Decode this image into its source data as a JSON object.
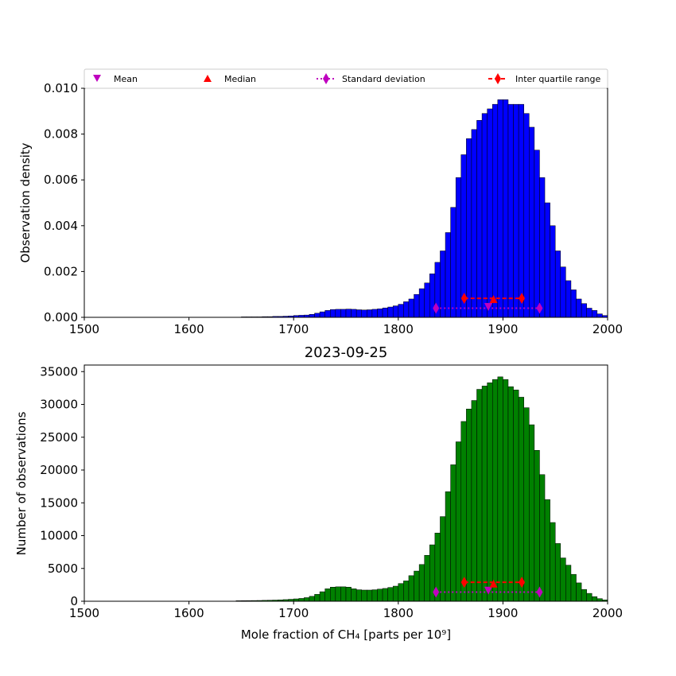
{
  "legend": {
    "location": "top, above upper panel",
    "entries": [
      {
        "label": "Mean",
        "marker": "triangle-down",
        "color": "#bf00bf"
      },
      {
        "label": "Median",
        "marker": "triangle-up",
        "color": "#ff0000"
      },
      {
        "label": "Standard deviation",
        "marker": "diamond",
        "color": "#bf00bf",
        "line": "dotted"
      },
      {
        "label": "Inter quartile range",
        "marker": "diamond",
        "color": "#ff0000",
        "line": "dashed"
      }
    ]
  },
  "chart_data": [
    {
      "type": "bar",
      "panel": "top",
      "bar_color": "#0000ff",
      "ylabel": "Observation density",
      "xlim": [
        1500,
        2000
      ],
      "ylim": [
        0,
        0.01
      ],
      "xticks": [
        "1500",
        "1600",
        "1700",
        "1800",
        "1900",
        "2000"
      ],
      "yticks": [
        "0.000",
        "0.002",
        "0.004",
        "0.006",
        "0.008",
        "0.010"
      ],
      "grid": false,
      "bin_width": 5,
      "bins": [
        [
          1650,
          2e-05
        ],
        [
          1655,
          2e-05
        ],
        [
          1660,
          2e-05
        ],
        [
          1665,
          2e-05
        ],
        [
          1670,
          3e-05
        ],
        [
          1675,
          3e-05
        ],
        [
          1680,
          4e-05
        ],
        [
          1685,
          4e-05
        ],
        [
          1690,
          5e-05
        ],
        [
          1695,
          6e-05
        ],
        [
          1700,
          8e-05
        ],
        [
          1705,
          9e-05
        ],
        [
          1710,
          0.0001
        ],
        [
          1715,
          0.00013
        ],
        [
          1720,
          0.00018
        ],
        [
          1725,
          0.00024
        ],
        [
          1730,
          0.0003
        ],
        [
          1735,
          0.00034
        ],
        [
          1740,
          0.00035
        ],
        [
          1745,
          0.00035
        ],
        [
          1750,
          0.00036
        ],
        [
          1755,
          0.00035
        ],
        [
          1760,
          0.00033
        ],
        [
          1765,
          0.00032
        ],
        [
          1770,
          0.00033
        ],
        [
          1775,
          0.00035
        ],
        [
          1780,
          0.00037
        ],
        [
          1785,
          0.00041
        ],
        [
          1790,
          0.00045
        ],
        [
          1795,
          0.0005
        ],
        [
          1800,
          0.00057
        ],
        [
          1805,
          0.00068
        ],
        [
          1810,
          0.0008
        ],
        [
          1815,
          0.001
        ],
        [
          1820,
          0.00125
        ],
        [
          1825,
          0.0015
        ],
        [
          1830,
          0.0019
        ],
        [
          1835,
          0.0024
        ],
        [
          1840,
          0.0029
        ],
        [
          1845,
          0.0037
        ],
        [
          1850,
          0.0048
        ],
        [
          1855,
          0.0061
        ],
        [
          1860,
          0.0071
        ],
        [
          1865,
          0.0078
        ],
        [
          1870,
          0.0082
        ],
        [
          1875,
          0.0086
        ],
        [
          1880,
          0.0089
        ],
        [
          1885,
          0.0091
        ],
        [
          1890,
          0.0093
        ],
        [
          1895,
          0.0095
        ],
        [
          1900,
          0.0095
        ],
        [
          1905,
          0.0093
        ],
        [
          1910,
          0.0093
        ],
        [
          1915,
          0.0093
        ],
        [
          1920,
          0.0089
        ],
        [
          1925,
          0.0083
        ],
        [
          1930,
          0.0073
        ],
        [
          1935,
          0.0061
        ],
        [
          1940,
          0.005
        ],
        [
          1945,
          0.004
        ],
        [
          1950,
          0.0029
        ],
        [
          1955,
          0.0022
        ],
        [
          1960,
          0.0016
        ],
        [
          1965,
          0.0012
        ],
        [
          1970,
          0.0008
        ],
        [
          1975,
          0.0006
        ],
        [
          1980,
          0.0004
        ],
        [
          1985,
          0.0003
        ],
        [
          1990,
          0.00015
        ],
        [
          1995,
          8e-05
        ]
      ],
      "stats": {
        "mean": {
          "x": 1886,
          "y": 0.00045
        },
        "median": {
          "x": 1891,
          "y": 0.0008
        },
        "std": {
          "min": 1836,
          "max": 1935,
          "y": 0.0004
        },
        "iqr": {
          "min": 1863,
          "max": 1918,
          "y": 0.00083
        }
      }
    },
    {
      "type": "bar",
      "panel": "bottom",
      "title": "2023-09-25",
      "bar_color": "#008000",
      "xlabel": "Mole fraction of CH₄ [parts per 10⁹]",
      "ylabel": "Number of observations",
      "xlim": [
        1500,
        2000
      ],
      "ylim": [
        0,
        36000
      ],
      "xticks": [
        "1500",
        "1600",
        "1700",
        "1800",
        "1900",
        "2000"
      ],
      "yticks": [
        "0",
        "5000",
        "10000",
        "15000",
        "20000",
        "25000",
        "30000",
        "35000"
      ],
      "grid": false,
      "bin_width": 5,
      "bins": [
        [
          1645,
          80
        ],
        [
          1650,
          90
        ],
        [
          1655,
          100
        ],
        [
          1660,
          110
        ],
        [
          1665,
          120
        ],
        [
          1670,
          140
        ],
        [
          1675,
          160
        ],
        [
          1680,
          180
        ],
        [
          1685,
          210
        ],
        [
          1690,
          250
        ],
        [
          1695,
          300
        ],
        [
          1700,
          360
        ],
        [
          1705,
          430
        ],
        [
          1710,
          550
        ],
        [
          1715,
          750
        ],
        [
          1720,
          1050
        ],
        [
          1725,
          1450
        ],
        [
          1730,
          1900
        ],
        [
          1735,
          2150
        ],
        [
          1740,
          2200
        ],
        [
          1745,
          2200
        ],
        [
          1750,
          2150
        ],
        [
          1755,
          1900
        ],
        [
          1760,
          1750
        ],
        [
          1765,
          1700
        ],
        [
          1770,
          1700
        ],
        [
          1775,
          1750
        ],
        [
          1780,
          1850
        ],
        [
          1785,
          1950
        ],
        [
          1790,
          2100
        ],
        [
          1795,
          2300
        ],
        [
          1800,
          2700
        ],
        [
          1805,
          3100
        ],
        [
          1810,
          3900
        ],
        [
          1815,
          4600
        ],
        [
          1820,
          5600
        ],
        [
          1825,
          7000
        ],
        [
          1830,
          8600
        ],
        [
          1835,
          10400
        ],
        [
          1840,
          12900
        ],
        [
          1845,
          16700
        ],
        [
          1850,
          20800
        ],
        [
          1855,
          24300
        ],
        [
          1860,
          27400
        ],
        [
          1865,
          29300
        ],
        [
          1870,
          30600
        ],
        [
          1875,
          32300
        ],
        [
          1880,
          32800
        ],
        [
          1885,
          33300
        ],
        [
          1890,
          33800
        ],
        [
          1895,
          34200
        ],
        [
          1900,
          33800
        ],
        [
          1905,
          32700
        ],
        [
          1910,
          32200
        ],
        [
          1915,
          31100
        ],
        [
          1920,
          29500
        ],
        [
          1925,
          26900
        ],
        [
          1930,
          23000
        ],
        [
          1935,
          19300
        ],
        [
          1940,
          15500
        ],
        [
          1945,
          12000
        ],
        [
          1950,
          8800
        ],
        [
          1955,
          6600
        ],
        [
          1960,
          5500
        ],
        [
          1965,
          4100
        ],
        [
          1970,
          2800
        ],
        [
          1975,
          1800
        ],
        [
          1980,
          1200
        ],
        [
          1985,
          700
        ],
        [
          1990,
          400
        ],
        [
          1995,
          200
        ]
      ],
      "stats": {
        "mean": {
          "x": 1886,
          "y": 1600
        },
        "median": {
          "x": 1891,
          "y": 2700
        },
        "std": {
          "min": 1836,
          "max": 1935,
          "y": 1400
        },
        "iqr": {
          "min": 1863,
          "max": 1918,
          "y": 2900
        }
      }
    }
  ]
}
